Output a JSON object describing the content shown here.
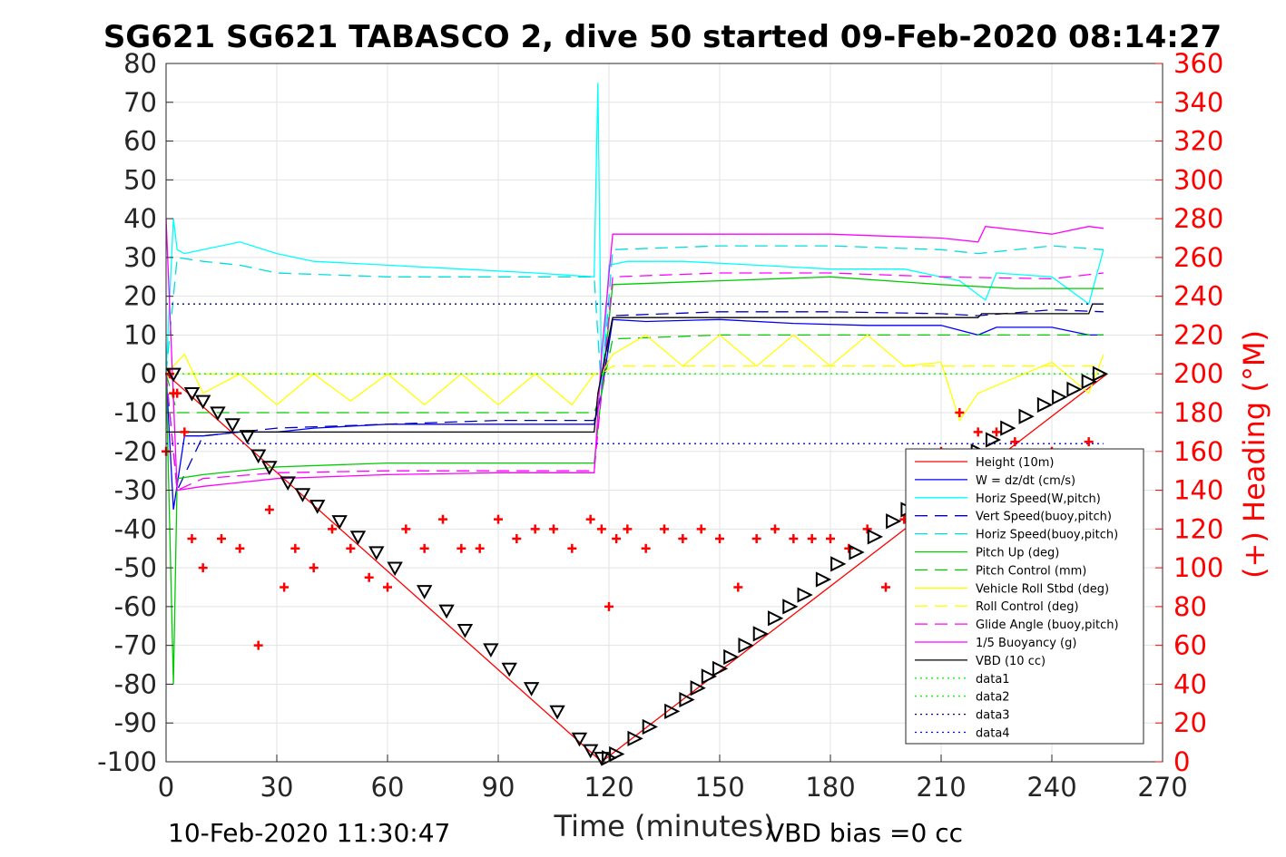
{
  "chart_data": {
    "type": "line",
    "title": "SG621 SG621 TABASCO 2, dive 50 started 09-Feb-2020 08:14:27",
    "xlabel": "Time (minutes)",
    "ylabel_right": "(+) Heading (°M)",
    "xlim": [
      0,
      270
    ],
    "ylim": [
      -100,
      80
    ],
    "ylim_right": [
      0,
      360
    ],
    "x_ticks": [
      "0",
      "30",
      "60",
      "90",
      "120",
      "150",
      "180",
      "210",
      "240",
      "270"
    ],
    "y_ticks": [
      "80",
      "70",
      "60",
      "50",
      "40",
      "30",
      "20",
      "10",
      "0",
      "-10",
      "-20",
      "-30",
      "-40",
      "-50",
      "-60",
      "-70",
      "-80",
      "-90",
      "-100"
    ],
    "y_right_ticks": [
      "360",
      "340",
      "320",
      "300",
      "280",
      "260",
      "240",
      "220",
      "200",
      "180",
      "160",
      "140",
      "120",
      "100",
      "80",
      "60",
      "40",
      "20",
      "0"
    ],
    "grid": true,
    "legend_position": "bottom-right",
    "footer_left": "10-Feb-2020 11:30:47",
    "footer_right": "VBD bias =0 cc",
    "series": [
      {
        "name": "Height (10m)",
        "color": "#ff0000",
        "dash": "solid",
        "x": [
          0,
          118,
          255
        ],
        "y": [
          0,
          -100,
          0
        ]
      },
      {
        "name": "W = dz/dt (cm/s)",
        "color": "#0000ff",
        "dash": "solid",
        "x": [
          0,
          2,
          5,
          10,
          20,
          30,
          40,
          60,
          80,
          100,
          116,
          118,
          121,
          130,
          150,
          170,
          190,
          210,
          220,
          225,
          240,
          250,
          254
        ],
        "y": [
          0,
          -35,
          -16,
          -16,
          -15,
          -15,
          -14,
          -13,
          -13,
          -13,
          -13,
          -5,
          14,
          13.5,
          14,
          13,
          12.5,
          12.5,
          10,
          12,
          12,
          10,
          10
        ]
      },
      {
        "name": "Horiz Speed(W,pitch)",
        "color": "#00ffff",
        "dash": "solid",
        "x": [
          0,
          2,
          3,
          5,
          10,
          20,
          30,
          40,
          60,
          80,
          100,
          116,
          117,
          118,
          120,
          125,
          140,
          160,
          180,
          200,
          215,
          222,
          225,
          240,
          250,
          254
        ],
        "y": [
          0,
          40,
          32,
          31,
          32,
          34,
          31,
          29,
          28,
          27,
          26,
          25,
          75,
          -5,
          28,
          29,
          29,
          28,
          27,
          27,
          24,
          19,
          26,
          25,
          18,
          32
        ]
      },
      {
        "name": "Vert Speed(buoy,pitch)",
        "color": "#0000bb",
        "dash": "dashed",
        "x": [
          0,
          3,
          10,
          30,
          60,
          90,
          116,
          118,
          121,
          150,
          180,
          210,
          220,
          240,
          254
        ],
        "y": [
          0,
          -30,
          -16,
          -14,
          -13,
          -12,
          -12,
          -5,
          15,
          16,
          16,
          15.5,
          15,
          16.5,
          16
        ]
      },
      {
        "name": "Horiz Speed(buoy,pitch)",
        "color": "#00dddd",
        "dash": "dashed",
        "x": [
          0,
          3,
          10,
          20,
          30,
          60,
          90,
          116,
          118,
          121,
          150,
          180,
          210,
          220,
          240,
          254
        ],
        "y": [
          0,
          30,
          29,
          28,
          26,
          25,
          25,
          25,
          -5,
          32,
          33,
          33,
          32,
          31,
          33,
          32
        ]
      },
      {
        "name": "Pitch Up (deg)",
        "color": "#00cc00",
        "dash": "solid",
        "x": [
          0,
          2,
          3,
          10,
          30,
          60,
          90,
          116,
          118,
          121,
          150,
          180,
          210,
          230,
          254
        ],
        "y": [
          0,
          -80,
          -27,
          -26,
          -24,
          -23,
          -23,
          -23,
          -5,
          23,
          24,
          25,
          23,
          22,
          22
        ]
      },
      {
        "name": "Pitch Control (mm)",
        "color": "#00cc00",
        "dash": "dashed",
        "x": [
          0,
          3,
          10,
          30,
          60,
          90,
          116,
          118,
          121,
          150,
          180,
          210,
          240,
          254
        ],
        "y": [
          0,
          -10,
          -10,
          -10,
          -10,
          -10,
          -10,
          -5,
          9,
          10,
          10,
          10,
          10,
          10
        ]
      },
      {
        "name": "Vehicle Roll Stbd (deg)",
        "color": "#ffff00",
        "dash": "solid",
        "x": [
          0,
          5,
          10,
          20,
          30,
          40,
          50,
          60,
          70,
          80,
          90,
          100,
          110,
          116,
          118,
          121,
          130,
          140,
          150,
          160,
          170,
          180,
          190,
          200,
          210,
          215,
          220,
          240,
          250,
          254
        ],
        "y": [
          0,
          5,
          -5,
          0,
          -8,
          0,
          -7,
          0,
          -8,
          0,
          -8,
          0,
          -8,
          0,
          0,
          5,
          10,
          2,
          10,
          2,
          10,
          2,
          10,
          2,
          3,
          -12,
          -5,
          3,
          -5,
          5
        ]
      },
      {
        "name": "Roll Control (deg)",
        "color": "#ffff00",
        "dash": "dashed",
        "x": [
          0,
          3,
          30,
          60,
          90,
          116,
          118,
          121,
          150,
          180,
          210,
          240,
          254
        ],
        "y": [
          0,
          0,
          0,
          0,
          0,
          0,
          0,
          2,
          2,
          2,
          2,
          2,
          2
        ]
      },
      {
        "name": "Glide Angle (buoy,pitch)",
        "color": "#ff00ff",
        "dash": "dashed",
        "x": [
          0,
          3,
          10,
          30,
          60,
          90,
          116,
          118,
          121,
          150,
          180,
          210,
          240,
          254
        ],
        "y": [
          0,
          -30,
          -27,
          -25.5,
          -25,
          -25,
          -25,
          -5,
          25,
          26,
          26,
          25,
          24.5,
          26
        ]
      },
      {
        "name": "1/5 Buoyancy (g)",
        "color": "#ff00ff",
        "dash": "solid",
        "x": [
          0,
          3,
          10,
          30,
          60,
          90,
          116,
          118,
          121,
          150,
          180,
          210,
          220,
          222,
          240,
          250,
          254
        ],
        "y": [
          40,
          -30,
          -29,
          -27,
          -26,
          -25.5,
          -25.5,
          5,
          36,
          36,
          36,
          35,
          34,
          38,
          36,
          38,
          37.5
        ]
      },
      {
        "name": "VBD (10 cc)",
        "color": "#000000",
        "dash": "solid",
        "x": [
          0,
          2,
          5,
          116,
          117,
          121,
          220,
          221,
          250,
          251,
          254
        ],
        "y": [
          -15,
          -15,
          -15,
          -15,
          -5,
          14.5,
          14.5,
          15.5,
          15.5,
          18,
          18
        ]
      },
      {
        "name": "data1",
        "color": "#00ff00",
        "dash": "dotted",
        "x": [
          0,
          254
        ],
        "y": [
          0,
          0
        ]
      },
      {
        "name": "data2",
        "color": "#00ff00",
        "dash": "dotted",
        "x": [
          0,
          254
        ],
        "y": [
          0,
          0
        ]
      },
      {
        "name": "data3",
        "color": "#000088",
        "dash": "dotted",
        "x": [
          0,
          254
        ],
        "y": [
          18,
          18
        ]
      },
      {
        "name": "data4",
        "color": "#0000ff",
        "dash": "dotted",
        "x": [
          0,
          254
        ],
        "y": [
          -18,
          -18
        ]
      }
    ],
    "heading_series": {
      "name": "Heading",
      "color": "#ff0000",
      "marker": "+",
      "x": [
        0,
        1,
        2,
        3,
        5,
        7,
        10,
        15,
        20,
        25,
        28,
        32,
        35,
        40,
        45,
        50,
        55,
        60,
        65,
        70,
        75,
        80,
        85,
        90,
        95,
        100,
        105,
        110,
        115,
        118,
        120,
        122,
        125,
        130,
        135,
        140,
        145,
        150,
        155,
        160,
        165,
        170,
        175,
        180,
        185,
        190,
        195,
        200,
        205,
        210,
        215,
        220,
        225,
        230,
        240,
        250
      ],
      "y": [
        160,
        200,
        190,
        190,
        170,
        115,
        100,
        115,
        110,
        60,
        130,
        90,
        110,
        100,
        120,
        110,
        95,
        90,
        120,
        110,
        125,
        110,
        110,
        125,
        115,
        120,
        120,
        110,
        125,
        120,
        80,
        115,
        120,
        110,
        120,
        115,
        120,
        115,
        90,
        115,
        120,
        115,
        115,
        115,
        110,
        120,
        90,
        125,
        110,
        160,
        180,
        170,
        170,
        165,
        160,
        165
      ]
    },
    "depth_markers": {
      "marker": "triangle",
      "x": [
        2,
        7,
        10,
        14,
        18,
        22,
        25,
        28,
        33,
        37,
        41,
        47,
        52,
        57,
        62,
        70,
        76,
        81,
        88,
        93,
        99,
        106,
        112,
        115,
        118,
        120,
        122,
        127,
        131,
        137,
        141,
        144,
        147,
        150,
        153,
        157,
        161,
        165,
        169,
        173,
        178,
        182,
        187,
        192,
        197,
        201,
        206,
        212,
        216,
        220,
        224,
        228,
        233,
        238,
        242,
        246,
        250,
        253
      ],
      "y": [
        0,
        -5,
        -7,
        -10,
        -13,
        -16,
        -21,
        -24,
        -28,
        -31,
        -34,
        -38,
        -42,
        -46,
        -50,
        -56,
        -61,
        -66,
        -71,
        -76,
        -81,
        -87,
        -94,
        -97,
        -99,
        -99,
        -98,
        -94,
        -91,
        -87,
        -84,
        -81,
        -78,
        -76,
        -73,
        -70,
        -67,
        -63,
        -60,
        -57,
        -53,
        -49,
        -46,
        -42,
        -38,
        -35,
        -30,
        -26,
        -23,
        -20,
        -17,
        -14,
        -11,
        -8,
        -6,
        -4,
        -2,
        0
      ]
    }
  }
}
